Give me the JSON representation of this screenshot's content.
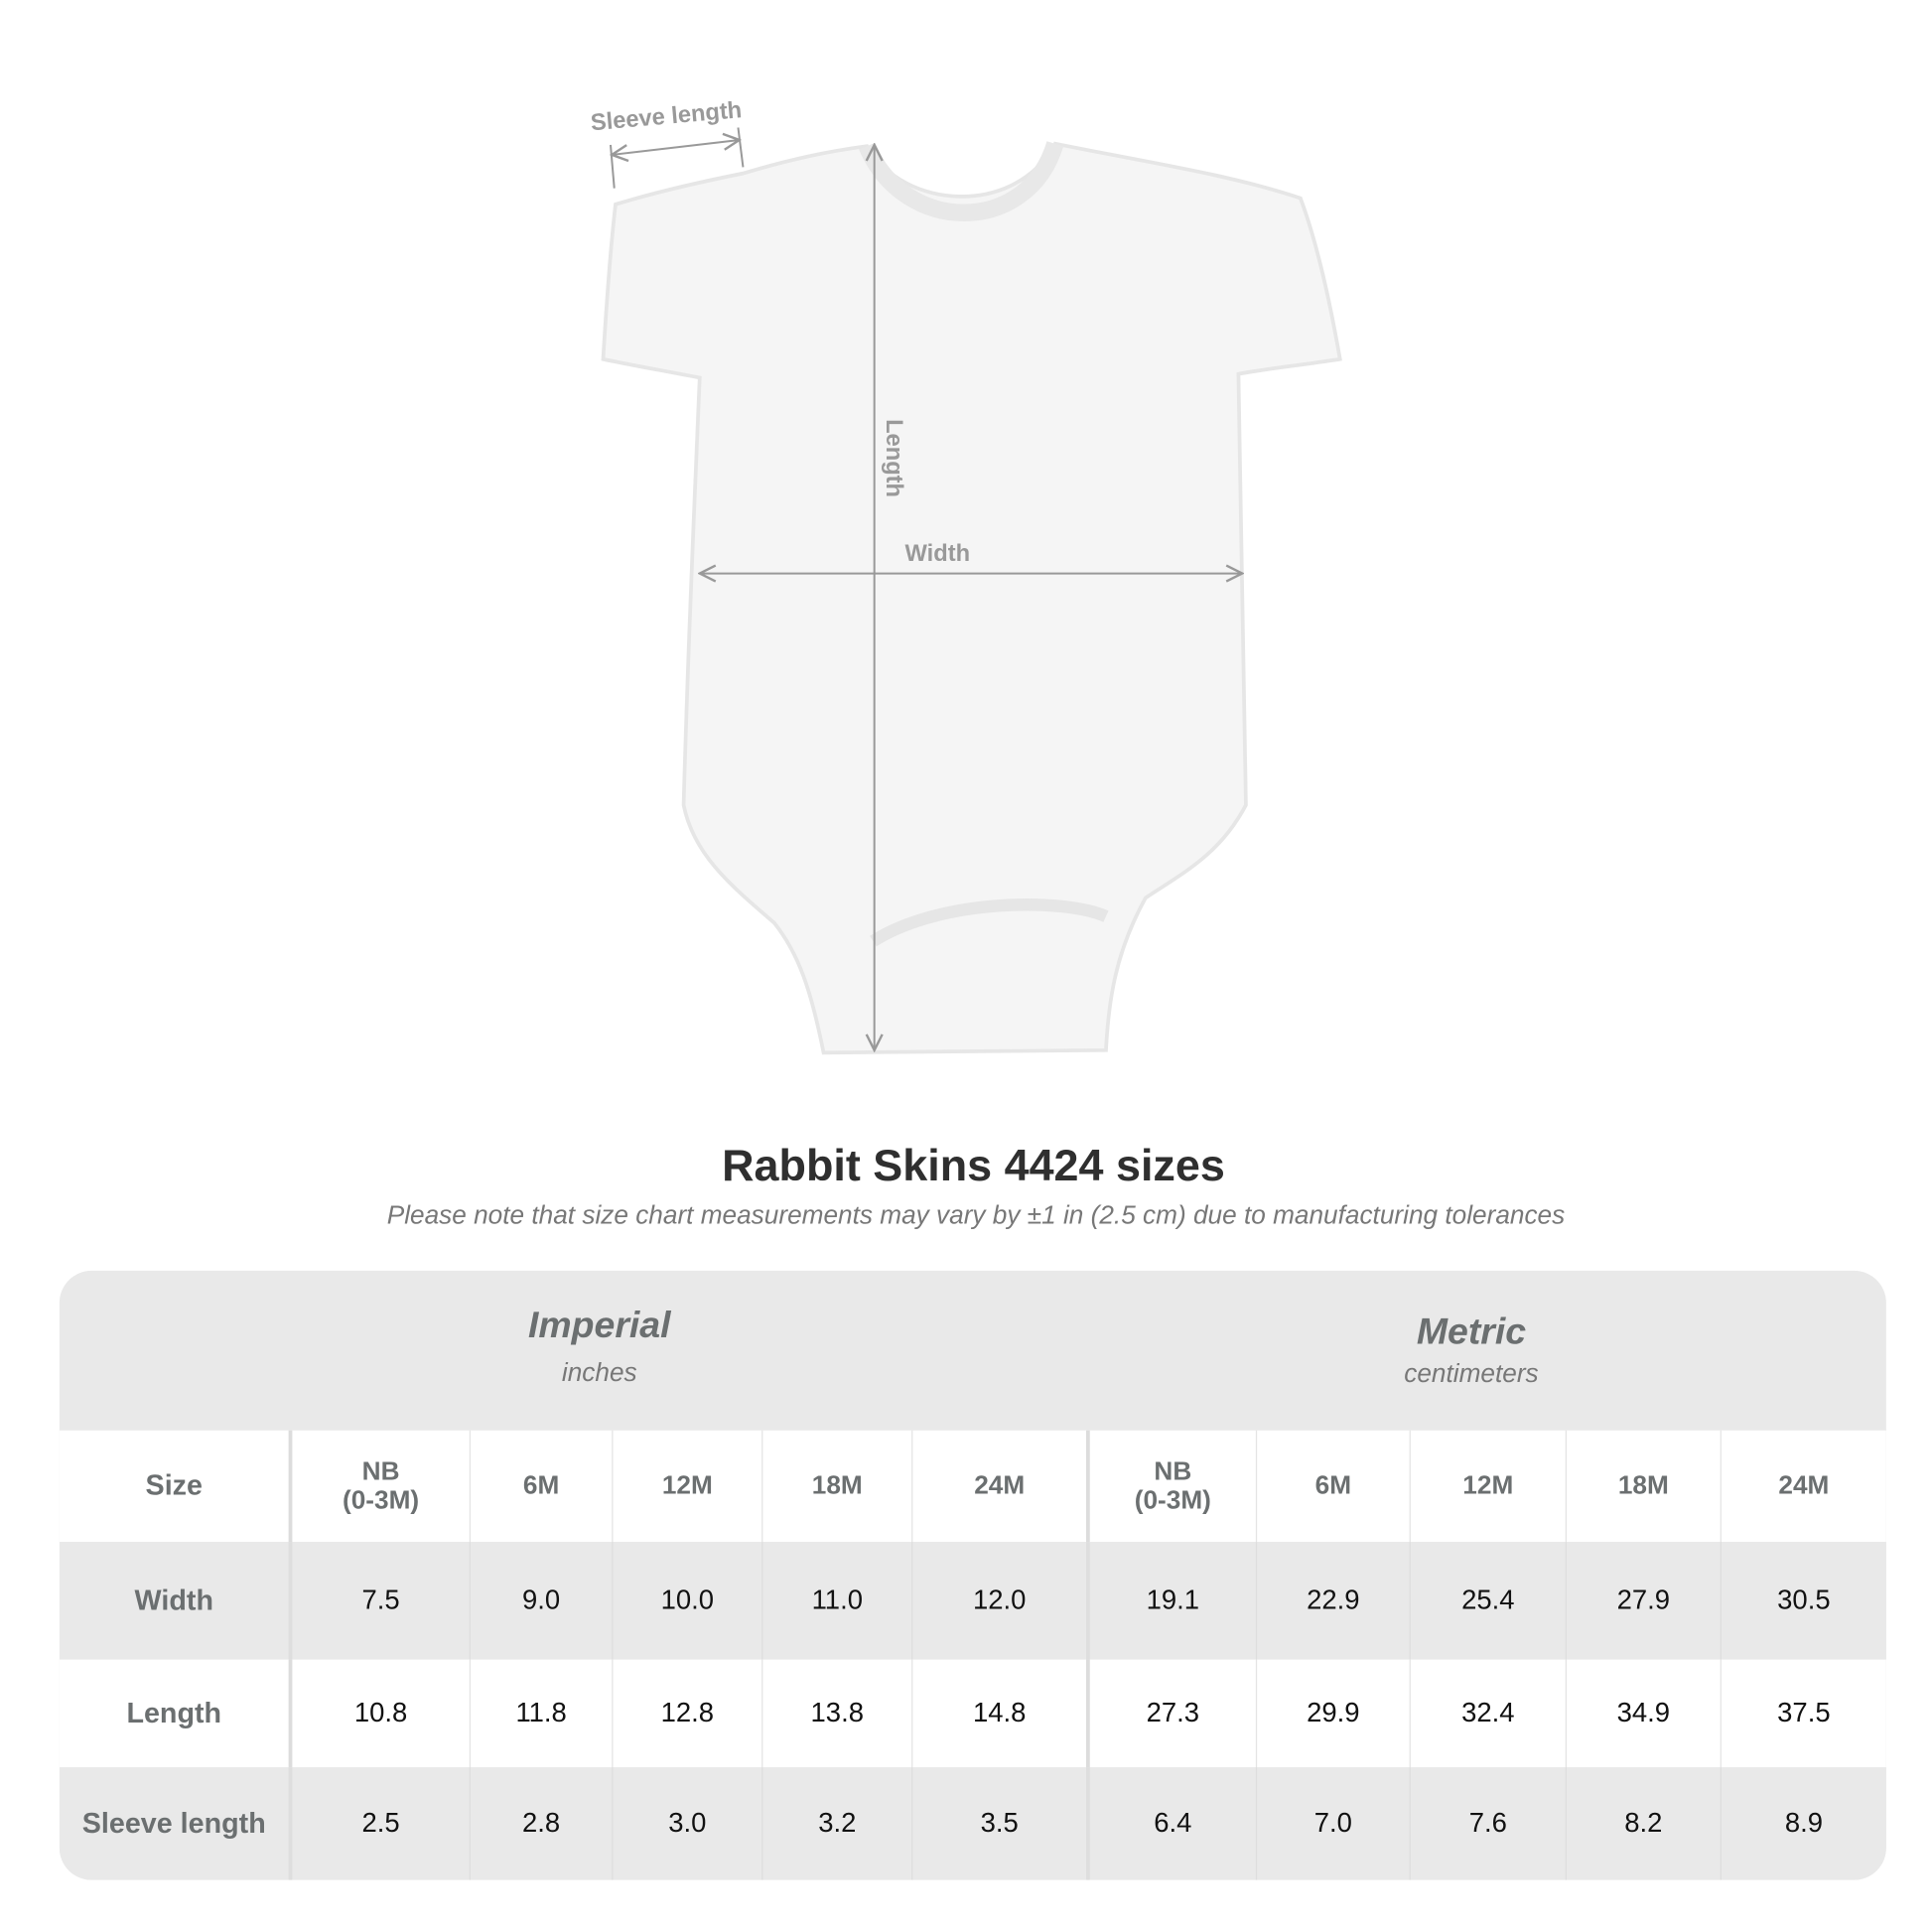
{
  "diagram": {
    "sleeve_label": "Sleeve length",
    "length_label": "Length",
    "width_label": "Width"
  },
  "title": "Rabbit Skins 4424 sizes",
  "note": "Please note that size chart measurements may vary by ±1 in (2.5 cm) due to manufacturing tolerances",
  "table": {
    "imperial": {
      "title": "Imperial",
      "unit": "inches"
    },
    "metric": {
      "title": "Metric",
      "unit": "centimeters"
    },
    "size_label": "Size",
    "sizes": [
      "NB\n(0-3M)",
      "6M",
      "12M",
      "18M",
      "24M"
    ],
    "rows": [
      {
        "label": "Width",
        "imperial": [
          "7.5",
          "9.0",
          "10.0",
          "11.0",
          "12.0"
        ],
        "metric": [
          "19.1",
          "22.9",
          "25.4",
          "27.9",
          "30.5"
        ]
      },
      {
        "label": "Length",
        "imperial": [
          "10.8",
          "11.8",
          "12.8",
          "13.8",
          "14.8"
        ],
        "metric": [
          "27.3",
          "29.9",
          "32.4",
          "34.9",
          "37.5"
        ]
      },
      {
        "label": "Sleeve length",
        "imperial": [
          "2.5",
          "2.8",
          "3.0",
          "3.2",
          "3.5"
        ],
        "metric": [
          "6.4",
          "7.0",
          "7.6",
          "8.2",
          "8.9"
        ]
      }
    ]
  }
}
